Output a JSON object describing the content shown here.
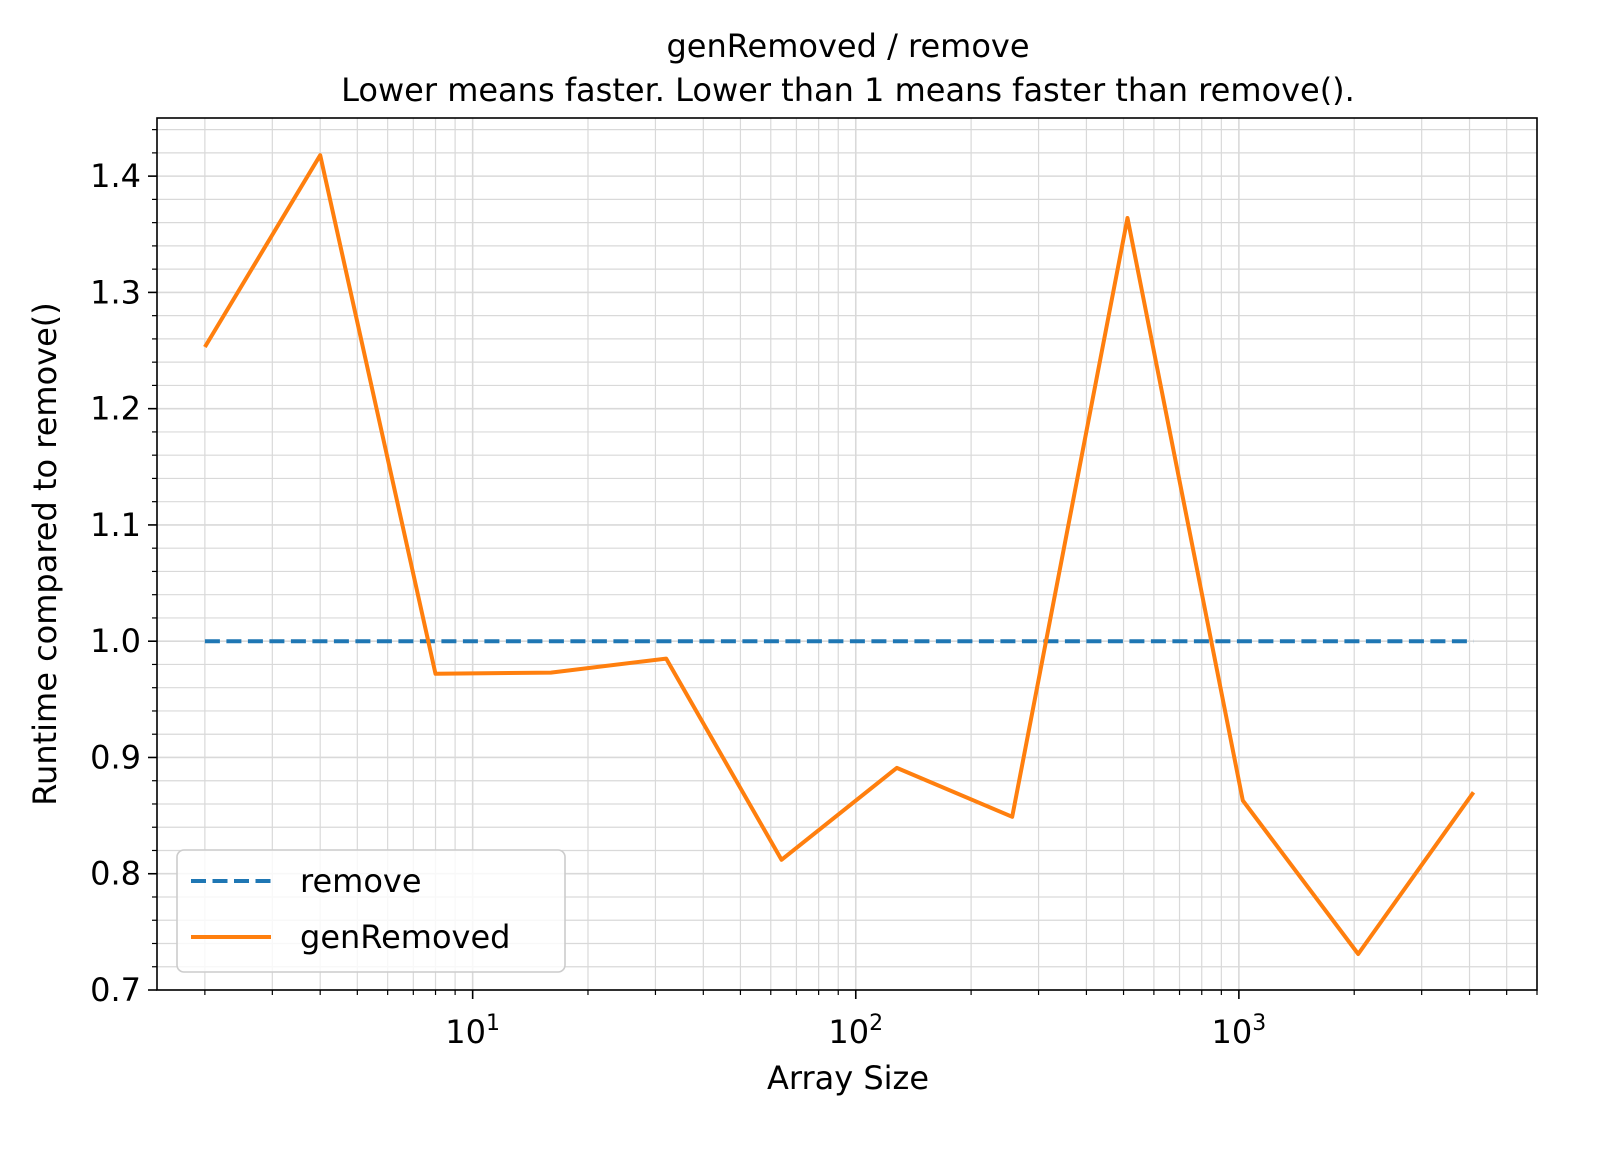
{
  "chart_data": {
    "type": "line",
    "title": "genRemoved / remove",
    "subtitle": "Lower means faster. Lower than 1 means faster than remove().",
    "xlabel": "Array Size",
    "ylabel": "Runtime compared to remove()",
    "xscale": "log",
    "xlim": [
      1.5,
      6000
    ],
    "ylim": [
      0.7,
      1.45
    ],
    "grid": true,
    "legend_position": "lower left",
    "x_ticks": [
      {
        "value": 10,
        "base": "10",
        "exp": "1"
      },
      {
        "value": 100,
        "base": "10",
        "exp": "2"
      },
      {
        "value": 1000,
        "base": "10",
        "exp": "3"
      }
    ],
    "y_ticks": [
      "0.7",
      "0.8",
      "0.9",
      "1.0",
      "1.1",
      "1.2",
      "1.3",
      "1.4"
    ],
    "x": [
      2,
      4,
      8,
      16,
      32,
      64,
      128,
      256,
      512,
      1024,
      2048,
      4096
    ],
    "series": [
      {
        "name": "remove",
        "color": "#1f77b4",
        "style": "dashed",
        "values": [
          1.0,
          1.0,
          1.0,
          1.0,
          1.0,
          1.0,
          1.0,
          1.0,
          1.0,
          1.0,
          1.0,
          1.0
        ]
      },
      {
        "name": "genRemoved",
        "color": "#ff7f0e",
        "style": "solid",
        "values": [
          1.253,
          1.418,
          0.972,
          0.973,
          0.985,
          0.812,
          0.891,
          0.849,
          1.364,
          0.863,
          0.731,
          0.87
        ]
      }
    ]
  }
}
